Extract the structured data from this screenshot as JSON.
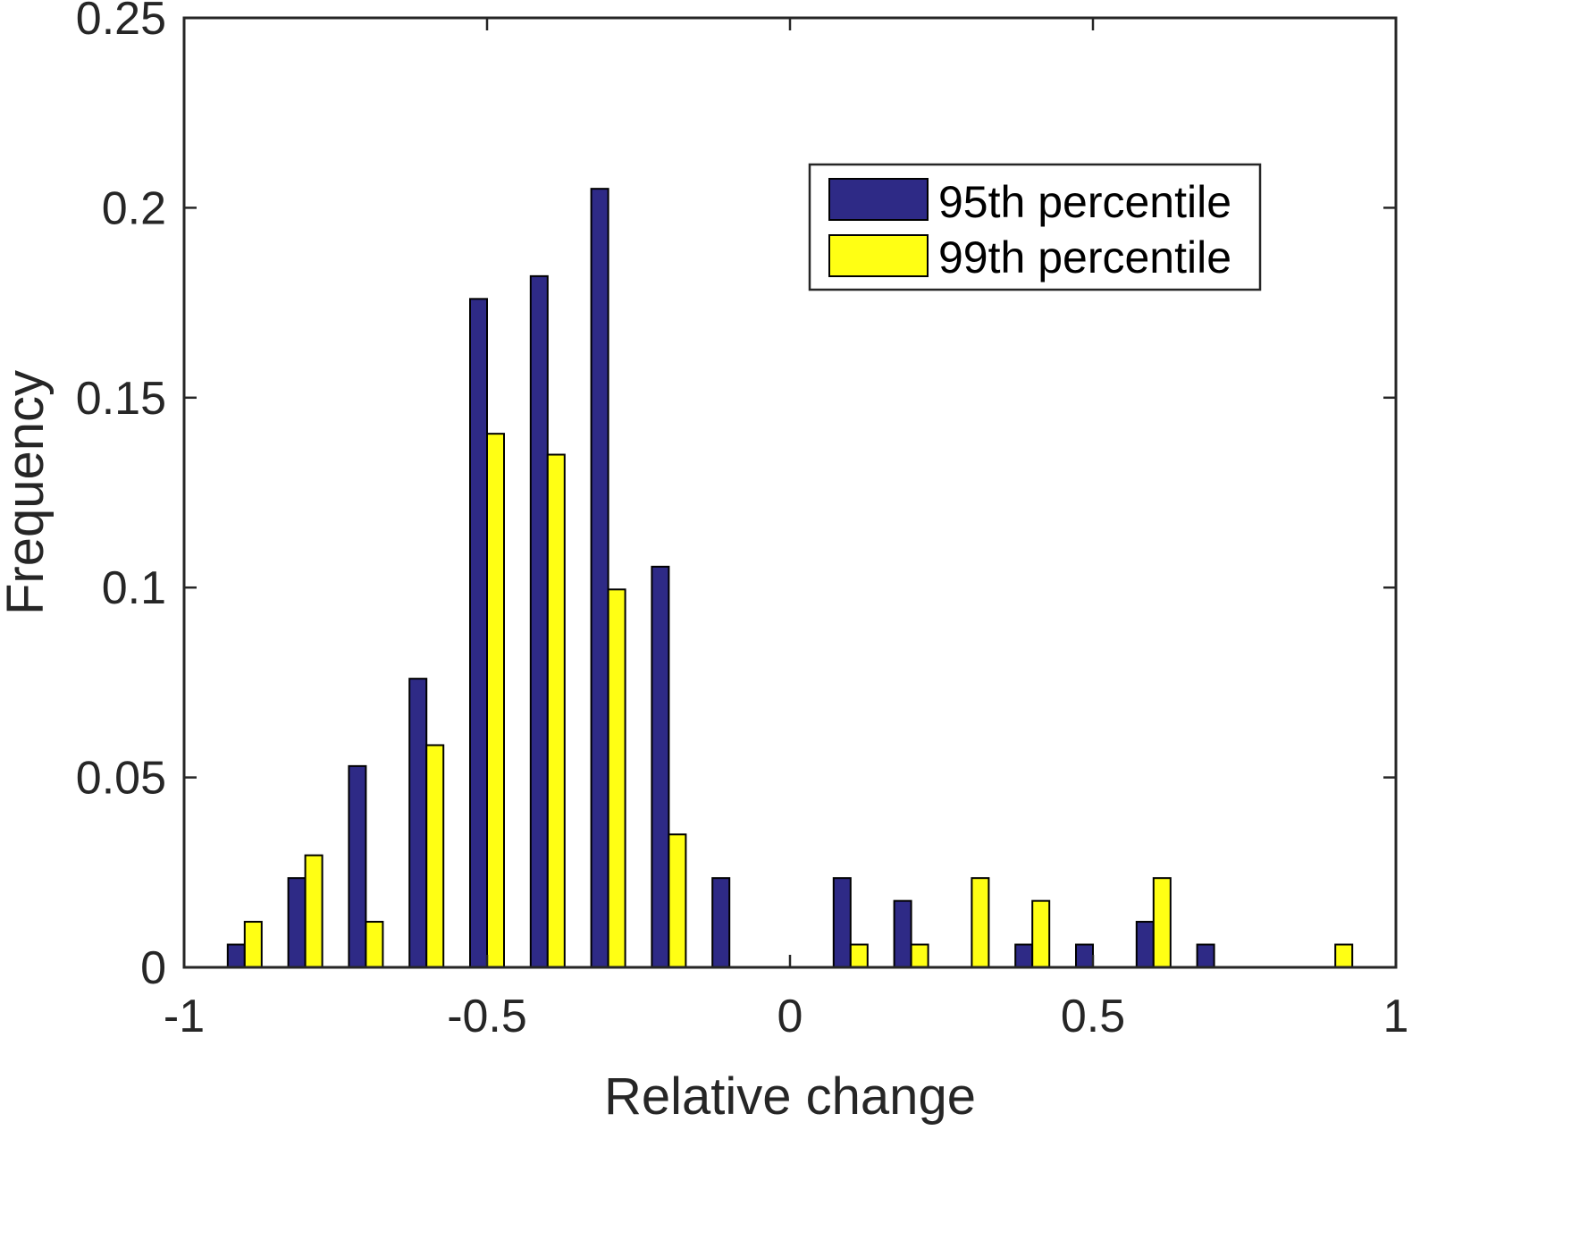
{
  "chart_data": {
    "type": "bar",
    "xlabel": "Relative change",
    "ylabel": "Frequency",
    "xlim": [
      -1,
      1
    ],
    "ylim": [
      0,
      0.25
    ],
    "xticks": [
      "-1",
      "-0.5",
      "0",
      "0.5",
      "1"
    ],
    "xtick_values": [
      -1,
      -0.5,
      0,
      0.5,
      1
    ],
    "yticks": [
      "0",
      "0.05",
      "0.1",
      "0.15",
      "0.2",
      "0.25"
    ],
    "ytick_values": [
      0,
      0.05,
      0.1,
      0.15,
      0.2,
      0.25
    ],
    "bin_centers": [
      -0.9,
      -0.8,
      -0.7,
      -0.6,
      -0.5,
      -0.4,
      -0.3,
      -0.2,
      -0.1,
      0.0,
      0.1,
      0.2,
      0.3,
      0.4,
      0.5,
      0.6,
      0.7,
      0.8,
      0.9
    ],
    "bin_width": 0.1,
    "legend_position": "top-right",
    "grid": false,
    "series": [
      {
        "name": "95th percentile",
        "color": "#2E2A86",
        "values": [
          0.006,
          0.0235,
          0.053,
          0.076,
          0.176,
          0.182,
          0.205,
          0.1055,
          0.0235,
          0,
          0.0235,
          0.0175,
          0,
          0.006,
          0.006,
          0.012,
          0.006,
          0,
          0
        ]
      },
      {
        "name": "99th percentile",
        "color": "#FFFF14",
        "values": [
          0.012,
          0.0295,
          0.012,
          0.0585,
          0.1405,
          0.135,
          0.0995,
          0.035,
          0,
          0,
          0.006,
          0.006,
          0.0235,
          0.0175,
          0,
          0.0235,
          0,
          0,
          0.006
        ]
      }
    ]
  }
}
